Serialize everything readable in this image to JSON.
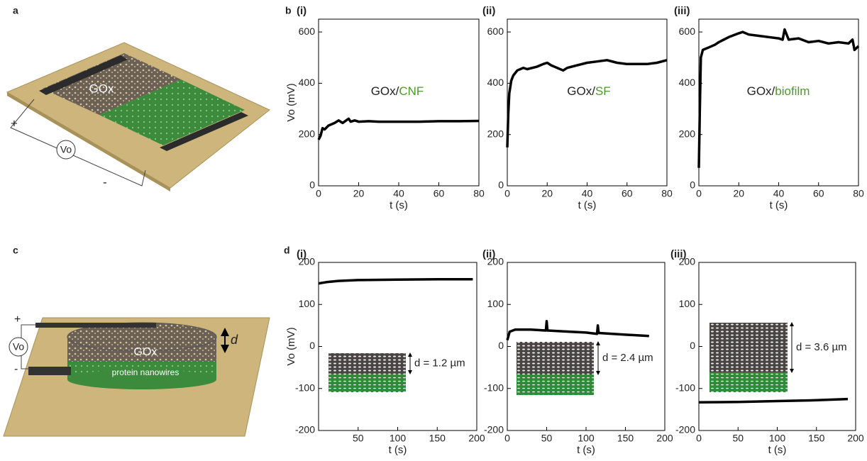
{
  "chart_data": [
    {
      "type": "line",
      "panel": "(i)",
      "annotation": {
        "dark": "GOx/",
        "green": "CNF"
      },
      "x_label": "t (s)",
      "y_label": "Vo (mV)",
      "color": "#000000",
      "x": [
        0,
        1,
        2,
        3,
        5,
        8,
        10,
        12,
        15,
        16,
        18,
        20,
        25,
        30,
        40,
        50,
        60,
        70,
        80
      ],
      "y": [
        180,
        195,
        225,
        220,
        235,
        245,
        255,
        245,
        262,
        250,
        255,
        250,
        252,
        250,
        250,
        250,
        252,
        252,
        253
      ],
      "xlim": [
        0,
        80
      ],
      "ylim": [
        0,
        650
      ],
      "xticks": [
        0,
        20,
        40,
        60,
        80
      ],
      "yticks": [
        0,
        200,
        400,
        600
      ]
    },
    {
      "type": "line",
      "panel": "(ii)",
      "annotation": {
        "dark": "GOx/",
        "green": "SF"
      },
      "x_label": "t (s)",
      "color": "#000000",
      "x": [
        0,
        0.5,
        1,
        2,
        3,
        5,
        8,
        10,
        15,
        18,
        20,
        22,
        25,
        28,
        30,
        35,
        40,
        45,
        50,
        55,
        60,
        70,
        75,
        80
      ],
      "y": [
        150,
        280,
        360,
        410,
        430,
        450,
        460,
        455,
        465,
        475,
        480,
        470,
        460,
        450,
        460,
        470,
        480,
        485,
        490,
        480,
        475,
        475,
        480,
        490
      ],
      "xlim": [
        0,
        80
      ],
      "ylim": [
        0,
        650
      ],
      "xticks": [
        0,
        20,
        40,
        60,
        80
      ],
      "yticks": [
        0,
        200,
        400,
        600
      ]
    },
    {
      "type": "line",
      "panel": "(iii)",
      "annotation": {
        "dark": "GOx/",
        "green": "biofilm"
      },
      "x_label": "t (s)",
      "color": "#000000",
      "x": [
        0,
        0.5,
        1,
        2,
        5,
        8,
        10,
        15,
        20,
        22,
        25,
        30,
        35,
        40,
        42,
        43,
        45,
        50,
        55,
        60,
        65,
        70,
        75,
        77,
        78,
        80
      ],
      "y": [
        70,
        300,
        500,
        530,
        540,
        550,
        560,
        580,
        595,
        600,
        590,
        585,
        580,
        575,
        570,
        610,
        570,
        575,
        560,
        565,
        555,
        560,
        555,
        570,
        530,
        545
      ],
      "xlim": [
        0,
        80
      ],
      "ylim": [
        0,
        650
      ],
      "xticks": [
        0,
        20,
        40,
        60,
        80
      ],
      "yticks": [
        0,
        200,
        400,
        600
      ]
    },
    {
      "type": "line",
      "panel": "(i)",
      "inset_label": "d = 1.2 µm",
      "x_label": "t (s)",
      "y_label": "Vo (mV)",
      "color": "#000000",
      "x": [
        0,
        10,
        25,
        50,
        100,
        150,
        195
      ],
      "y": [
        150,
        153,
        156,
        158,
        159,
        160,
        160
      ],
      "xlim": [
        0,
        200
      ],
      "ylim": [
        -200,
        200
      ],
      "xticks": [
        50,
        100,
        150,
        200
      ],
      "yticks": [
        -200,
        -100,
        0,
        100,
        200
      ]
    },
    {
      "type": "line",
      "panel": "(ii)",
      "inset_label": "d = 2.4 µm",
      "x_label": "t (s)",
      "color": "#000000",
      "x": [
        0,
        3,
        10,
        30,
        49,
        50,
        51,
        80,
        100,
        114,
        115,
        116,
        150,
        180
      ],
      "y": [
        15,
        35,
        40,
        40,
        38,
        60,
        38,
        35,
        33,
        30,
        50,
        32,
        28,
        25
      ],
      "xlim": [
        0,
        200
      ],
      "ylim": [
        -200,
        200
      ],
      "xticks": [
        0,
        50,
        100,
        150,
        200
      ],
      "yticks": [
        -200,
        -100,
        0,
        100,
        200
      ]
    },
    {
      "type": "line",
      "panel": "(iii)",
      "inset_label": "d = 3.6 µm",
      "x_label": "t (s)",
      "color": "#000000",
      "x": [
        0,
        50,
        100,
        150,
        190
      ],
      "y": [
        -133,
        -132,
        -130,
        -128,
        -125
      ],
      "xlim": [
        0,
        200
      ],
      "ylim": [
        -200,
        200
      ],
      "xticks": [
        0,
        50,
        100,
        150,
        200
      ],
      "yticks": [
        -200,
        -100,
        0,
        100,
        200
      ]
    }
  ],
  "figure": {
    "panel_labels": [
      "a",
      "b",
      "c",
      "d"
    ],
    "diagram_a": {
      "material": "GOx",
      "plus": "+",
      "minus": "-",
      "meter": "Vo"
    },
    "diagram_c": {
      "plus": "+",
      "minus": "-",
      "meter": "Vo",
      "material": "GOx",
      "thickness": "d",
      "bottom_layer": "protein nanowires"
    }
  }
}
